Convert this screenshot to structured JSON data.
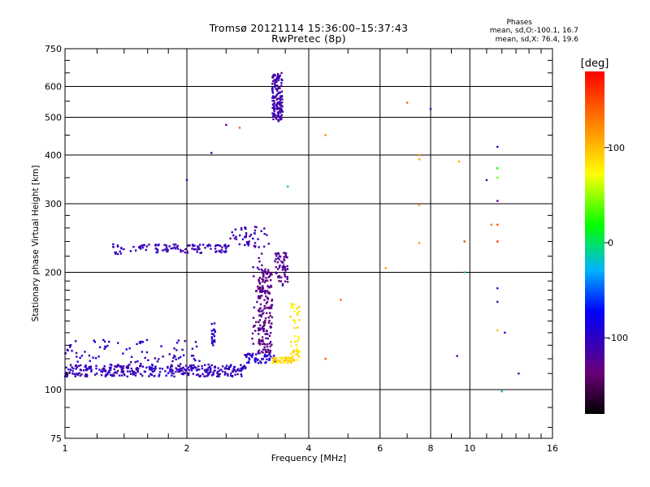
{
  "chart_data": {
    "type": "scatter",
    "title": "Tromsø 20121114 15:36:00–15:37:43",
    "subtitle": "RwPretec (8p)",
    "xlabel": "Frequency [MHz]",
    "ylabel": "Stationary phase Virtual Height [km]",
    "x_scale": "log",
    "y_scale": "log",
    "xlim": [
      1,
      16
    ],
    "ylim": [
      75,
      750
    ],
    "x_ticks": [
      1,
      2,
      4,
      6,
      8,
      10,
      16
    ],
    "x_tick_labels": [
      "1",
      "2",
      "4",
      "6",
      "8",
      "10",
      "16"
    ],
    "y_ticks": [
      75,
      100,
      200,
      300,
      400,
      500,
      600,
      750
    ],
    "y_tick_labels": [
      "75",
      "100",
      "200",
      "300",
      "400",
      "500",
      "600",
      "750"
    ],
    "grid": true,
    "colorbar": {
      "label": "[deg]",
      "range": [
        -180,
        180
      ],
      "ticks": [
        100,
        0,
        -100
      ],
      "tick_labels": [
        "100",
        "0",
        "-100"
      ]
    },
    "phases_legend": {
      "title": "Phases",
      "line1": "mean, sd,O:-100.1, 16.7",
      "line2": "mean, sd,X:  76.4, 19.6"
    },
    "clusters": [
      {
        "f": [
          1.0,
          2.8
        ],
        "h": [
          108,
          116
        ],
        "phase": -105,
        "n": 330
      },
      {
        "f": [
          1.0,
          2.2
        ],
        "h": [
          113,
          135
        ],
        "phase": -100,
        "n": 90
      },
      {
        "f": [
          2.75,
          3.3
        ],
        "h": [
          117,
          124
        ],
        "phase": -95,
        "n": 50
      },
      {
        "f": [
          3.0,
          3.25
        ],
        "h": [
          124,
          205
        ],
        "phase": -128,
        "n": 160
      },
      {
        "f": [
          2.9,
          3.1
        ],
        "h": [
          125,
          225
        ],
        "phase": -122,
        "n": 40
      },
      {
        "f": [
          3.25,
          3.75
        ],
        "h": [
          117,
          121
        ],
        "phase": 88,
        "n": 55
      },
      {
        "f": [
          3.6,
          3.8
        ],
        "h": [
          121,
          168
        ],
        "phase": 82,
        "n": 40
      },
      {
        "f": [
          3.3,
          3.55
        ],
        "h": [
          185,
          225
        ],
        "phase": -125,
        "n": 60
      },
      {
        "f": [
          1.45,
          2.55
        ],
        "h": [
          224,
          236
        ],
        "phase": -105,
        "n": 100
      },
      {
        "f": [
          2.55,
          3.2
        ],
        "h": [
          232,
          262
        ],
        "phase": -108,
        "n": 45
      },
      {
        "f": [
          1.3,
          1.4
        ],
        "h": [
          222,
          238
        ],
        "phase": -100,
        "n": 15
      },
      {
        "f": [
          3.25,
          3.45
        ],
        "h": [
          488,
          650
        ],
        "phase": -112,
        "n": 140
      },
      {
        "f": [
          2.3,
          2.35
        ],
        "h": [
          128,
          148
        ],
        "phase": -100,
        "n": 20
      }
    ],
    "isolated_points": [
      {
        "f": 4.4,
        "h": 450,
        "phase": 120
      },
      {
        "f": 4.4,
        "h": 120,
        "phase": 140
      },
      {
        "f": 4.8,
        "h": 170,
        "phase": 140
      },
      {
        "f": 6.2,
        "h": 205,
        "phase": 115
      },
      {
        "f": 7.0,
        "h": 545,
        "phase": 140
      },
      {
        "f": 7.5,
        "h": 400,
        "phase": 120
      },
      {
        "f": 7.5,
        "h": 390,
        "phase": 110
      },
      {
        "f": 7.5,
        "h": 298,
        "phase": 120
      },
      {
        "f": 7.5,
        "h": 238,
        "phase": 115
      },
      {
        "f": 8.0,
        "h": 525,
        "phase": -120
      },
      {
        "f": 9.3,
        "h": 122,
        "phase": -130
      },
      {
        "f": 9.4,
        "h": 385,
        "phase": 110
      },
      {
        "f": 9.7,
        "h": 240,
        "phase": 150
      },
      {
        "f": 9.7,
        "h": 200,
        "phase": -20
      },
      {
        "f": 11.0,
        "h": 345,
        "phase": -110
      },
      {
        "f": 11.3,
        "h": 265,
        "phase": 130
      },
      {
        "f": 11.7,
        "h": 420,
        "phase": -100
      },
      {
        "f": 11.7,
        "h": 370,
        "phase": 20
      },
      {
        "f": 11.7,
        "h": 350,
        "phase": 40
      },
      {
        "f": 11.7,
        "h": 265,
        "phase": 150
      },
      {
        "f": 11.7,
        "h": 240,
        "phase": 160
      },
      {
        "f": 11.7,
        "h": 305,
        "phase": -130
      },
      {
        "f": 11.7,
        "h": 182,
        "phase": -110
      },
      {
        "f": 11.7,
        "h": 168,
        "phase": -110
      },
      {
        "f": 11.7,
        "h": 142,
        "phase": 100
      },
      {
        "f": 12.2,
        "h": 140,
        "phase": -110
      },
      {
        "f": 12.0,
        "h": 99,
        "phase": -20
      },
      {
        "f": 13.2,
        "h": 110,
        "phase": -120
      },
      {
        "f": 3.55,
        "h": 332,
        "phase": -20
      },
      {
        "f": 2.0,
        "h": 345,
        "phase": -105
      },
      {
        "f": 2.3,
        "h": 405,
        "phase": -100
      },
      {
        "f": 2.5,
        "h": 478,
        "phase": -110
      },
      {
        "f": 2.7,
        "h": 470,
        "phase": 140
      }
    ]
  },
  "colors": {
    "grid": "#000000",
    "background": "#ffffff"
  }
}
